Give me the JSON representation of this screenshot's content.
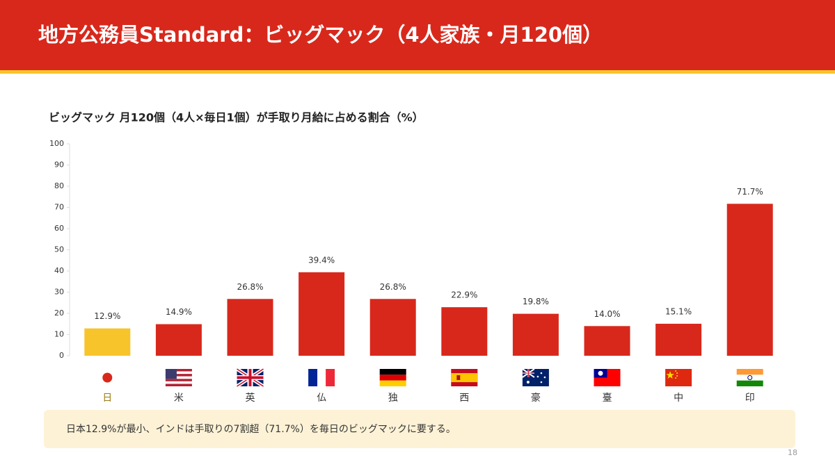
{
  "header": {
    "title": "地方公務員Standard：ビッグマック（4人家族・月120個）"
  },
  "chart_data": {
    "type": "bar",
    "title": "ビッグマック 月120個（4人×毎日1個）が手取り月給に占める割合（%）",
    "categories": [
      "日",
      "米",
      "英",
      "仏",
      "独",
      "西",
      "豪",
      "臺",
      "中",
      "印"
    ],
    "values": [
      12.9,
      14.9,
      26.8,
      39.4,
      26.8,
      22.9,
      19.8,
      14.0,
      15.1,
      71.7
    ],
    "value_labels": [
      "12.9%",
      "14.9%",
      "26.8%",
      "39.4%",
      "26.8%",
      "22.9%",
      "19.8%",
      "14.0%",
      "15.1%",
      "71.7%"
    ],
    "colors": [
      "#f8c42c",
      "#d8281c",
      "#d8281c",
      "#d8281c",
      "#d8281c",
      "#d8281c",
      "#d8281c",
      "#d8281c",
      "#d8281c",
      "#d8281c"
    ],
    "ylim": [
      0,
      100
    ],
    "yticks": [
      0,
      10,
      20,
      30,
      40,
      50,
      60,
      70,
      80,
      90,
      100
    ],
    "grid": false
  },
  "footnote": "日本12.9%が最小、インドは手取りの7割超（71.7%）を毎日のビッグマックに要する。",
  "page_number": "18"
}
